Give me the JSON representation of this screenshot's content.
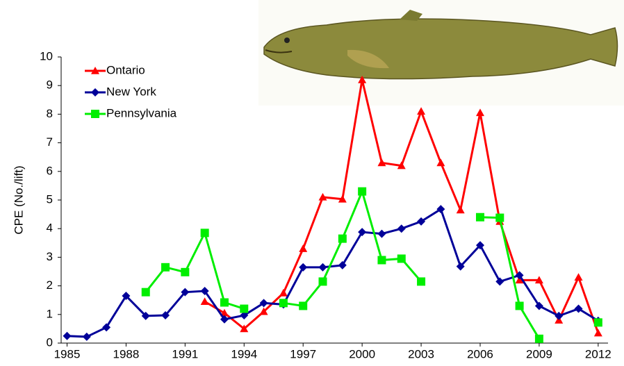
{
  "chart_data": {
    "type": "line",
    "y_label": "CPE (No./lift)",
    "x": [
      1985,
      1986,
      1987,
      1988,
      1989,
      1990,
      1991,
      1992,
      1993,
      1994,
      1995,
      1996,
      1997,
      1998,
      1999,
      2000,
      2001,
      2002,
      2003,
      2004,
      2005,
      2006,
      2007,
      2008,
      2009,
      2010,
      2011,
      2012
    ],
    "series": [
      {
        "name": "Ontario",
        "color": "#ff0000",
        "marker": "triangle",
        "values": [
          null,
          null,
          null,
          null,
          null,
          null,
          null,
          1.45,
          1.05,
          0.5,
          1.1,
          1.75,
          3.3,
          5.1,
          5.03,
          9.2,
          6.3,
          6.2,
          8.1,
          6.3,
          4.65,
          8.05,
          4.25,
          2.2,
          2.2,
          0.8,
          2.3,
          0.35
        ]
      },
      {
        "name": "New York",
        "color": "#000099",
        "marker": "diamond",
        "values": [
          0.25,
          0.22,
          0.55,
          1.65,
          0.95,
          0.97,
          1.78,
          1.82,
          0.83,
          0.97,
          1.4,
          1.35,
          2.65,
          2.65,
          2.72,
          3.88,
          3.82,
          4.0,
          4.25,
          4.68,
          2.68,
          3.42,
          2.15,
          2.37,
          1.3,
          0.95,
          1.2,
          0.78
        ]
      },
      {
        "name": "Pennsylvania",
        "color": "#00ee00",
        "marker": "square",
        "values": [
          null,
          null,
          null,
          null,
          1.78,
          2.65,
          2.48,
          3.85,
          1.42,
          1.2,
          null,
          1.4,
          1.3,
          2.15,
          3.65,
          5.3,
          2.9,
          2.95,
          2.15,
          null,
          null,
          4.4,
          4.38,
          1.3,
          0.15,
          null,
          null,
          0.72
        ]
      }
    ],
    "xlim": [
      1984.7,
      2012.5
    ],
    "ylim": [
      0,
      10
    ],
    "xticks": [
      1985,
      1988,
      1991,
      1994,
      1997,
      2000,
      2003,
      2006,
      2009,
      2012
    ],
    "yticks": [
      0,
      1,
      2,
      3,
      4,
      5,
      6,
      7,
      8,
      9,
      10
    ]
  }
}
